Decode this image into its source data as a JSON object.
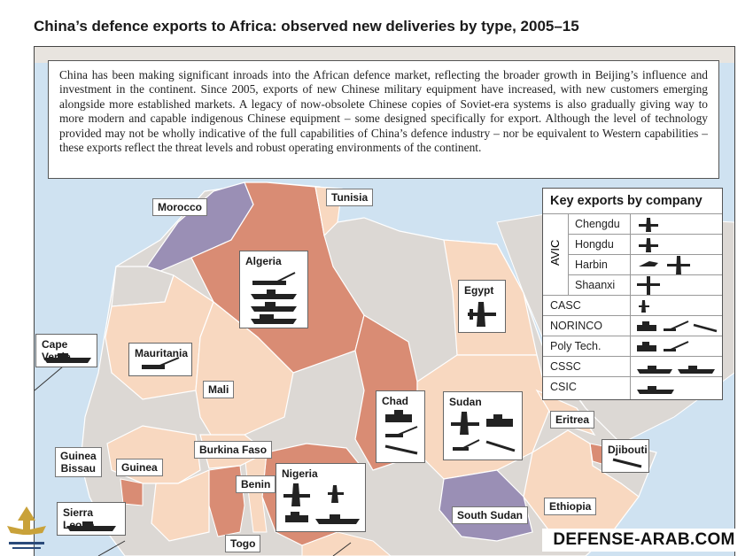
{
  "title": "China’s defence exports to Africa: observed new deliveries by type, 2005–15",
  "intro_text": "China has been making significant inroads into the African defence market, reflecting the broader growth in Beijing’s influence and investment in the continent. Since 2005, exports of new Chinese military equipment have increased, with new customers emerging alongside more established markets. A legacy of now-obsolete Chinese copies of Soviet-era systems is also gradually giving way to more modern and capable indigenous Chinese equipment – some designed specifically for export. Although the level of technology provided may not be wholly indicative of the full capabilities of China’s defence industry – nor be equivalent to Western capabilities – these exports reflect the threat levels and robust operating environments of the continent.",
  "labels": {
    "morocco": "Morocco",
    "tunisia": "Tunisia",
    "algeria": "Algeria",
    "egypt": "Egypt",
    "cape_verde": "Cape Verde",
    "mauritania": "Mauritania",
    "mali": "Mali",
    "chad": "Chad",
    "sudan": "Sudan",
    "eritrea": "Eritrea",
    "djibouti": "Djibouti",
    "guinea_bissau_1": "Guinea",
    "guinea_bissau_2": "Bissau",
    "guinea": "Guinea",
    "burkina_faso": "Burkina Faso",
    "benin": "Benin",
    "nigeria": "Nigeria",
    "sierra_leone": "Sierra Leone",
    "south_sudan": "South Sudan",
    "ethiopia": "Ethiopia",
    "togo": "Togo"
  },
  "key": {
    "title": "Key exports by company",
    "group": "AVIC",
    "rows": [
      "Chengdu",
      "Hongdu",
      "Harbin",
      "Shaanxi",
      "CASC",
      "NORINCO",
      "Poly Tech.",
      "CSSC",
      "CSIC"
    ]
  },
  "watermark": "DEFENSE-ARAB.COM",
  "colors": {
    "sea": "#cfe2f1",
    "country_light": "#f8d8c0",
    "country_gray": "#dcd8d4",
    "country_dark": "#d98c74",
    "country_purple": "#9a8fb5"
  }
}
